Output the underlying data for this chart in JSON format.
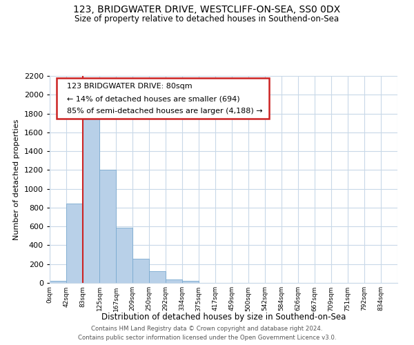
{
  "title1": "123, BRIDGWATER DRIVE, WESTCLIFF-ON-SEA, SS0 0DX",
  "title2": "Size of property relative to detached houses in Southend-on-Sea",
  "xlabel": "Distribution of detached houses by size in Southend-on-Sea",
  "ylabel": "Number of detached properties",
  "bar_labels": [
    "0sqm",
    "42sqm",
    "83sqm",
    "125sqm",
    "167sqm",
    "209sqm",
    "250sqm",
    "292sqm",
    "334sqm",
    "375sqm",
    "417sqm",
    "459sqm",
    "500sqm",
    "542sqm",
    "584sqm",
    "626sqm",
    "667sqm",
    "709sqm",
    "751sqm",
    "792sqm",
    "834sqm"
  ],
  "bar_heights": [
    20,
    840,
    1800,
    1200,
    590,
    255,
    125,
    40,
    20,
    0,
    0,
    0,
    0,
    0,
    0,
    0,
    0,
    0,
    0,
    0,
    0
  ],
  "bar_color": "#b8d0e8",
  "bar_edge_color": "#7aaad0",
  "vline_color": "#cc2222",
  "vline_x": 2.0,
  "annotation_title": "123 BRIDGWATER DRIVE: 80sqm",
  "annotation_line1": "← 14% of detached houses are smaller (694)",
  "annotation_line2": "85% of semi-detached houses are larger (4,188) →",
  "annotation_box_color": "#cc2222",
  "ylim": [
    0,
    2200
  ],
  "yticks": [
    0,
    200,
    400,
    600,
    800,
    1000,
    1200,
    1400,
    1600,
    1800,
    2000,
    2200
  ],
  "footer1": "Contains HM Land Registry data © Crown copyright and database right 2024.",
  "footer2": "Contains public sector information licensed under the Open Government Licence v3.0.",
  "bg_color": "#ffffff",
  "grid_color": "#c8d8e8"
}
